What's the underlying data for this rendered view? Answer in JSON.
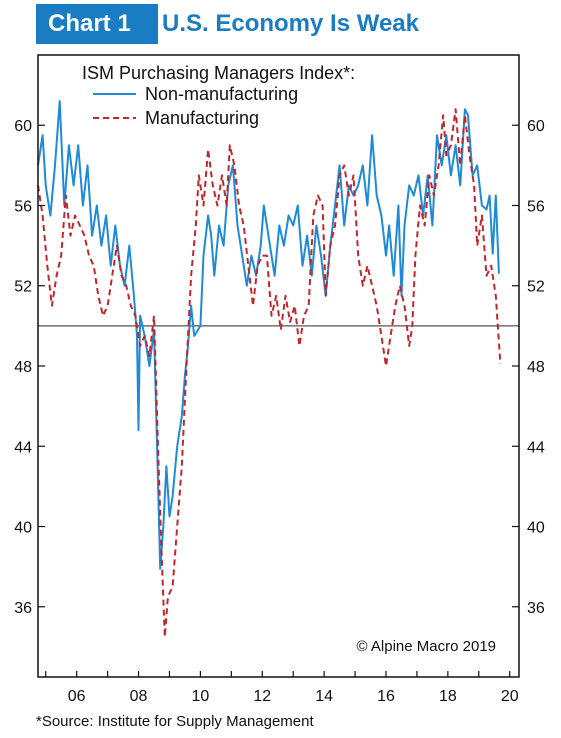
{
  "header": {
    "tag": "Chart 1",
    "title": "U.S. Economy Is Weak"
  },
  "source": "*Source: Institute for Supply Management",
  "colors": {
    "accent": "#1a7dc4",
    "non_manufacturing": "#1f8bd6",
    "manufacturing": "#c0272d",
    "reference_line": "#555555"
  },
  "chart_data": {
    "type": "line",
    "legend_title": "ISM Purchasing Managers Index*:",
    "legend_position": "top-left",
    "credit": "© Alpine Macro 2019",
    "reference_line": 50,
    "xlim": [
      2004.75,
      2020.3
    ],
    "ylim": [
      32.5,
      63.5
    ],
    "y_ticks": [
      36,
      40,
      44,
      48,
      52,
      56,
      60
    ],
    "x_ticks": [
      {
        "year": 2006,
        "label": "06"
      },
      {
        "year": 2008,
        "label": "08"
      },
      {
        "year": 2010,
        "label": "10"
      },
      {
        "year": 2012,
        "label": "12"
      },
      {
        "year": 2014,
        "label": "14"
      },
      {
        "year": 2016,
        "label": "16"
      },
      {
        "year": 2018,
        "label": "18"
      },
      {
        "year": 2020,
        "label": "20"
      }
    ],
    "series": [
      {
        "name": "Non-manufacturing",
        "style": "solid",
        "points": [
          [
            2004.75,
            58
          ],
          [
            2004.9,
            59.5
          ],
          [
            2005.0,
            57
          ],
          [
            2005.15,
            55.5
          ],
          [
            2005.3,
            58
          ],
          [
            2005.45,
            61.2
          ],
          [
            2005.6,
            56
          ],
          [
            2005.75,
            59
          ],
          [
            2005.9,
            57
          ],
          [
            2006.05,
            59
          ],
          [
            2006.2,
            56
          ],
          [
            2006.35,
            58
          ],
          [
            2006.5,
            54.5
          ],
          [
            2006.65,
            56
          ],
          [
            2006.8,
            54
          ],
          [
            2006.95,
            55.5
          ],
          [
            2007.1,
            53
          ],
          [
            2007.25,
            55
          ],
          [
            2007.4,
            53
          ],
          [
            2007.55,
            52
          ],
          [
            2007.7,
            54
          ],
          [
            2007.85,
            51.5
          ],
          [
            2007.95,
            49.5
          ],
          [
            2008.0,
            44.8
          ],
          [
            2008.05,
            50.5
          ],
          [
            2008.2,
            49.5
          ],
          [
            2008.35,
            48
          ],
          [
            2008.5,
            49.8
          ],
          [
            2008.6,
            44
          ],
          [
            2008.7,
            37.9
          ],
          [
            2008.8,
            40
          ],
          [
            2008.9,
            43
          ],
          [
            2009.0,
            40.5
          ],
          [
            2009.1,
            41.5
          ],
          [
            2009.25,
            44
          ],
          [
            2009.4,
            45.5
          ],
          [
            2009.5,
            47.5
          ],
          [
            2009.6,
            49
          ],
          [
            2009.7,
            51
          ],
          [
            2009.8,
            49.5
          ],
          [
            2010.0,
            50
          ],
          [
            2010.1,
            53.5
          ],
          [
            2010.25,
            55.5
          ],
          [
            2010.35,
            54.5
          ],
          [
            2010.45,
            52.5
          ],
          [
            2010.6,
            55
          ],
          [
            2010.75,
            54
          ],
          [
            2010.9,
            57
          ],
          [
            2011.05,
            58
          ],
          [
            2011.2,
            55
          ],
          [
            2011.35,
            53.5
          ],
          [
            2011.5,
            52
          ],
          [
            2011.65,
            53.5
          ],
          [
            2011.8,
            52.5
          ],
          [
            2011.95,
            54
          ],
          [
            2012.05,
            56
          ],
          [
            2012.25,
            54
          ],
          [
            2012.4,
            52.5
          ],
          [
            2012.55,
            55
          ],
          [
            2012.7,
            54
          ],
          [
            2012.85,
            55.5
          ],
          [
            2013.0,
            55
          ],
          [
            2013.15,
            56
          ],
          [
            2013.3,
            53
          ],
          [
            2013.45,
            54.5
          ],
          [
            2013.6,
            52.5
          ],
          [
            2013.75,
            55
          ],
          [
            2013.9,
            53.5
          ],
          [
            2014.05,
            51.5
          ],
          [
            2014.2,
            54
          ],
          [
            2014.35,
            56
          ],
          [
            2014.5,
            58
          ],
          [
            2014.65,
            55
          ],
          [
            2014.8,
            57
          ],
          [
            2014.95,
            56.5
          ],
          [
            2015.1,
            57
          ],
          [
            2015.25,
            58
          ],
          [
            2015.4,
            56
          ],
          [
            2015.55,
            59.5
          ],
          [
            2015.7,
            56.5
          ],
          [
            2015.85,
            55.5
          ],
          [
            2016.0,
            53.5
          ],
          [
            2016.1,
            55
          ],
          [
            2016.25,
            52.5
          ],
          [
            2016.4,
            56
          ],
          [
            2016.5,
            51.5
          ],
          [
            2016.6,
            55
          ],
          [
            2016.75,
            57
          ],
          [
            2016.9,
            56.5
          ],
          [
            2017.05,
            57.5
          ],
          [
            2017.2,
            55.5
          ],
          [
            2017.35,
            57.5
          ],
          [
            2017.5,
            55
          ],
          [
            2017.65,
            59.5
          ],
          [
            2017.8,
            58
          ],
          [
            2017.95,
            59.5
          ],
          [
            2018.1,
            57.5
          ],
          [
            2018.25,
            59
          ],
          [
            2018.4,
            57
          ],
          [
            2018.55,
            60.8
          ],
          [
            2018.65,
            60.5
          ],
          [
            2018.8,
            57.5
          ],
          [
            2018.95,
            58
          ],
          [
            2019.1,
            56
          ],
          [
            2019.25,
            55.8
          ],
          [
            2019.35,
            56.5
          ],
          [
            2019.45,
            53.6
          ],
          [
            2019.55,
            56.5
          ],
          [
            2019.65,
            52.6
          ]
        ]
      },
      {
        "name": "Manufacturing",
        "style": "dashed",
        "points": [
          [
            2004.75,
            57
          ],
          [
            2004.9,
            55.5
          ],
          [
            2005.05,
            53
          ],
          [
            2005.2,
            51
          ],
          [
            2005.35,
            52.5
          ],
          [
            2005.5,
            53.5
          ],
          [
            2005.65,
            56.5
          ],
          [
            2005.8,
            54.5
          ],
          [
            2005.95,
            55.5
          ],
          [
            2006.1,
            55
          ],
          [
            2006.25,
            54.5
          ],
          [
            2006.4,
            53.5
          ],
          [
            2006.55,
            53
          ],
          [
            2006.7,
            51.5
          ],
          [
            2006.85,
            50.5
          ],
          [
            2007.0,
            51
          ],
          [
            2007.15,
            52.5
          ],
          [
            2007.3,
            54
          ],
          [
            2007.45,
            52.5
          ],
          [
            2007.6,
            52
          ],
          [
            2007.75,
            51
          ],
          [
            2007.9,
            50.5
          ],
          [
            2008.05,
            49
          ],
          [
            2008.2,
            49.5
          ],
          [
            2008.35,
            48.5
          ],
          [
            2008.5,
            50.5
          ],
          [
            2008.65,
            43
          ],
          [
            2008.75,
            38.5
          ],
          [
            2008.85,
            34.5
          ],
          [
            2008.95,
            36.5
          ],
          [
            2009.1,
            37
          ],
          [
            2009.25,
            40
          ],
          [
            2009.4,
            43
          ],
          [
            2009.55,
            48
          ],
          [
            2009.7,
            52.5
          ],
          [
            2009.85,
            55
          ],
          [
            2009.95,
            57.5
          ],
          [
            2010.1,
            56
          ],
          [
            2010.25,
            58.8
          ],
          [
            2010.4,
            57
          ],
          [
            2010.55,
            56
          ],
          [
            2010.7,
            57.5
          ],
          [
            2010.85,
            56
          ],
          [
            2010.95,
            59
          ],
          [
            2011.1,
            58
          ],
          [
            2011.25,
            56
          ],
          [
            2011.4,
            55
          ],
          [
            2011.55,
            53
          ],
          [
            2011.7,
            51
          ],
          [
            2011.85,
            53
          ],
          [
            2012.0,
            53.5
          ],
          [
            2012.15,
            53.5
          ],
          [
            2012.3,
            50.5
          ],
          [
            2012.45,
            51.5
          ],
          [
            2012.6,
            49.8
          ],
          [
            2012.75,
            51.5
          ],
          [
            2012.9,
            50.2
          ],
          [
            2013.05,
            51
          ],
          [
            2013.2,
            49
          ],
          [
            2013.35,
            50.5
          ],
          [
            2013.5,
            51
          ],
          [
            2013.65,
            55.5
          ],
          [
            2013.8,
            56.5
          ],
          [
            2013.95,
            56
          ],
          [
            2014.05,
            51.5
          ],
          [
            2014.2,
            54
          ],
          [
            2014.35,
            55
          ],
          [
            2014.5,
            57.5
          ],
          [
            2014.65,
            58
          ],
          [
            2014.8,
            56.5
          ],
          [
            2014.95,
            57.5
          ],
          [
            2015.1,
            53.5
          ],
          [
            2015.25,
            52
          ],
          [
            2015.4,
            53
          ],
          [
            2015.55,
            52
          ],
          [
            2015.7,
            51
          ],
          [
            2015.85,
            49.5
          ],
          [
            2016.0,
            48
          ],
          [
            2016.15,
            49.5
          ],
          [
            2016.3,
            51
          ],
          [
            2016.45,
            52
          ],
          [
            2016.6,
            51
          ],
          [
            2016.75,
            49
          ],
          [
            2016.85,
            50
          ],
          [
            2016.95,
            53.5
          ],
          [
            2017.1,
            56
          ],
          [
            2017.25,
            55
          ],
          [
            2017.4,
            57.5
          ],
          [
            2017.55,
            56.5
          ],
          [
            2017.7,
            58
          ],
          [
            2017.85,
            60.5
          ],
          [
            2017.95,
            58.5
          ],
          [
            2018.1,
            59
          ],
          [
            2018.25,
            60.8
          ],
          [
            2018.4,
            58
          ],
          [
            2018.55,
            60.5
          ],
          [
            2018.7,
            58.5
          ],
          [
            2018.85,
            57
          ],
          [
            2018.95,
            54
          ],
          [
            2019.1,
            55.5
          ],
          [
            2019.25,
            52.5
          ],
          [
            2019.4,
            53
          ],
          [
            2019.55,
            51.5
          ],
          [
            2019.7,
            48.1
          ]
        ]
      }
    ]
  }
}
